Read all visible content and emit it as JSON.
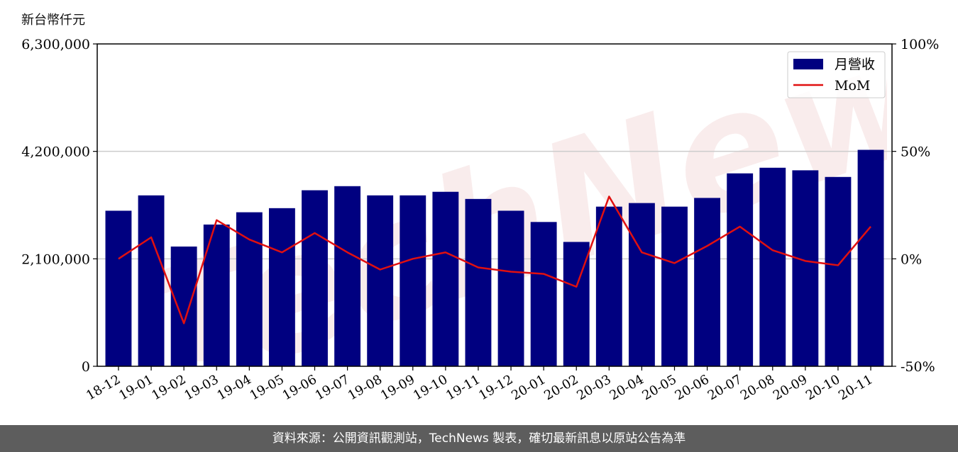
{
  "unit_label": "新台幣仟元",
  "watermark_text": "TechNews",
  "footer_text": "資料來源：公開資訊觀測站，TechNews 製表，確切最新訊息以原站公告為準",
  "chart_data": {
    "type": "bar",
    "categories": [
      "18-12",
      "19-01",
      "19-02",
      "19-03",
      "19-04",
      "19-05",
      "19-06",
      "19-07",
      "19-08",
      "19-09",
      "19-10",
      "19-11",
      "19-12",
      "20-01",
      "20-02",
      "20-03",
      "20-04",
      "20-05",
      "20-06",
      "20-07",
      "20-08",
      "20-09",
      "20-10",
      "20-11"
    ],
    "series": [
      {
        "name": "月營收",
        "type": "bar",
        "axis": "left",
        "color": "#000080",
        "values": [
          3040000,
          3340000,
          2340000,
          2770000,
          3010000,
          3090000,
          3440000,
          3520000,
          3340000,
          3340000,
          3410000,
          3270000,
          3040000,
          2820000,
          2430000,
          3120000,
          3190000,
          3120000,
          3290000,
          3770000,
          3880000,
          3830000,
          3700000,
          4230000
        ]
      },
      {
        "name": "MoM",
        "type": "line",
        "axis": "right",
        "color": "#e01010",
        "values": [
          0,
          10,
          -30,
          18,
          9,
          3,
          12,
          3,
          -5,
          0,
          3,
          -4,
          -6,
          -7,
          -13,
          29,
          3,
          -2,
          6,
          15,
          4,
          -1,
          -3,
          15
        ]
      }
    ],
    "y_left": {
      "min": 0,
      "max": 6300000,
      "ticks": [
        "0",
        "2,100,000",
        "4,200,000",
        "6,300,000"
      ],
      "tick_values": [
        0,
        2100000,
        4200000,
        6300000
      ]
    },
    "y_right": {
      "min": -50,
      "max": 100,
      "ticks": [
        "-50%",
        "0%",
        "50%",
        "100%"
      ],
      "tick_values": [
        -50,
        0,
        50,
        100
      ]
    },
    "grid": "horizontal",
    "legend": "top-right"
  }
}
